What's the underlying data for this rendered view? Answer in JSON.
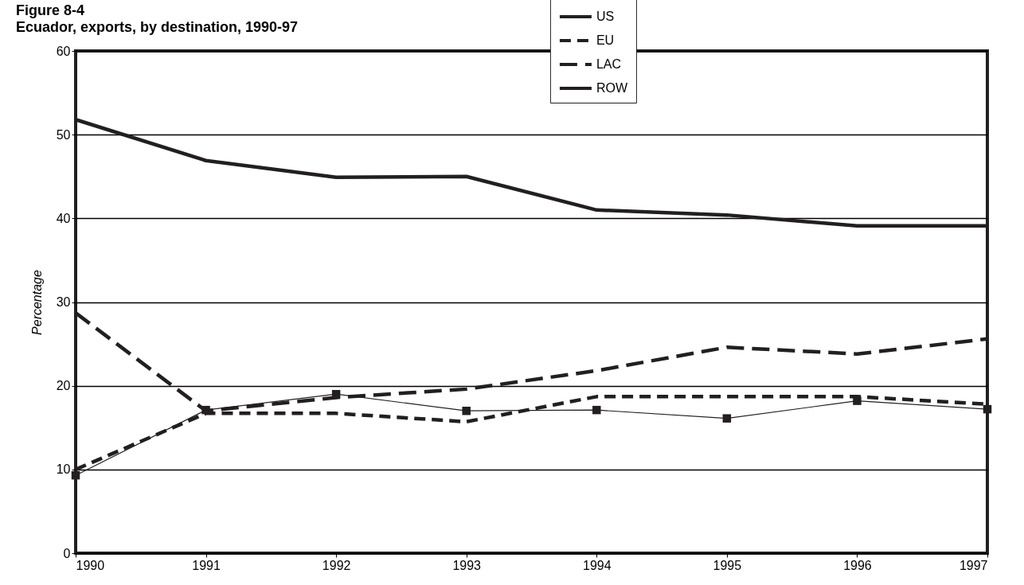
{
  "chart_data": {
    "type": "line",
    "title": "Figure 8-4",
    "subtitle": "Ecuador, exports, by destination, 1990-97",
    "ylabel": "Percentage",
    "x": [
      1990,
      1991,
      1992,
      1993,
      1994,
      1995,
      1996,
      1997
    ],
    "xlim": [
      1990,
      1997
    ],
    "xticks": [
      1990,
      1991,
      1992,
      1993,
      1994,
      1995,
      1996,
      1997
    ],
    "ylim": [
      0,
      60
    ],
    "yticks": [
      0,
      10,
      20,
      30,
      40,
      50,
      60
    ],
    "grid": "y",
    "legend": "top right",
    "series": [
      {
        "name": "US",
        "color": "#231f20",
        "line_style": "solid",
        "values": [
          51.8,
          46.9,
          44.9,
          45,
          41,
          40.4,
          39.1,
          39.1
        ]
      },
      {
        "name": "EU",
        "color": "#231f20",
        "line_style": "dashed",
        "values": [
          10,
          16.7,
          16.7,
          15.7,
          18.7,
          18.7,
          18.7,
          17.8
        ]
      },
      {
        "name": "LAC",
        "color": "#231f20",
        "line_style": "dashed",
        "values": [
          28.7,
          17,
          18.6,
          19.6,
          21.8,
          24.6,
          23.8,
          25.6
        ]
      },
      {
        "name": "ROW",
        "color": "#231f20",
        "line_style": "solid",
        "marker": "square",
        "values": [
          9.3,
          17.1,
          19,
          17,
          17.1,
          16.1,
          18.2,
          17.2
        ]
      }
    ]
  }
}
